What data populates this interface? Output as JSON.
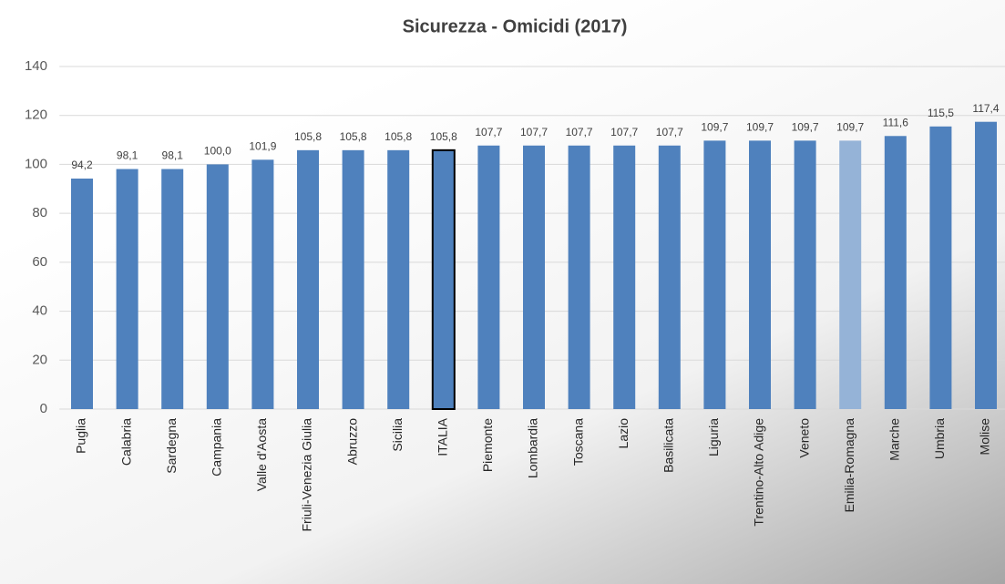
{
  "chart_data": {
    "type": "bar",
    "title": "Sicurezza - Omicidi (2017)",
    "categories": [
      "Puglia",
      "Calabria",
      "Sardegna",
      "Campania",
      "Valle d'Aosta",
      "Friuli-Venezia Giulia",
      "Abruzzo",
      "Sicilia",
      "ITALIA",
      "Piemonte",
      "Lombardia",
      "Toscana",
      "Lazio",
      "Basilicata",
      "Liguria",
      "Trentino-Alto Adige",
      "Veneto",
      "Emilia-Romagna",
      "Marche",
      "Umbria",
      "Molise"
    ],
    "values": [
      94.2,
      98.1,
      98.1,
      100.0,
      101.9,
      105.8,
      105.8,
      105.8,
      105.8,
      107.7,
      107.7,
      107.7,
      107.7,
      107.7,
      109.7,
      109.7,
      109.7,
      109.7,
      111.6,
      115.5,
      117.4
    ],
    "value_labels": [
      "94,2",
      "98,1",
      "98,1",
      "100,0",
      "101,9",
      "105,8",
      "105,8",
      "105,8",
      "105,8",
      "107,7",
      "107,7",
      "107,7",
      "107,7",
      "107,7",
      "109,7",
      "109,7",
      "109,7",
      "109,7",
      "111,6",
      "115,5",
      "117,4"
    ],
    "colors": [
      "#4f81bd",
      "#4f81bd",
      "#4f81bd",
      "#4f81bd",
      "#4f81bd",
      "#4f81bd",
      "#4f81bd",
      "#4f81bd",
      "#4f81bd",
      "#4f81bd",
      "#4f81bd",
      "#4f81bd",
      "#4f81bd",
      "#4f81bd",
      "#4f81bd",
      "#4f81bd",
      "#4f81bd",
      "#95b3d7",
      "#4f81bd",
      "#4f81bd",
      "#4f81bd"
    ],
    "edgecolors": [
      null,
      null,
      null,
      null,
      null,
      null,
      null,
      null,
      "#000000",
      null,
      null,
      null,
      null,
      null,
      null,
      null,
      null,
      null,
      null,
      null,
      null
    ],
    "ylim": [
      0,
      140
    ],
    "yticks": [
      0,
      20,
      40,
      60,
      80,
      100,
      120,
      140
    ],
    "grid": true
  }
}
